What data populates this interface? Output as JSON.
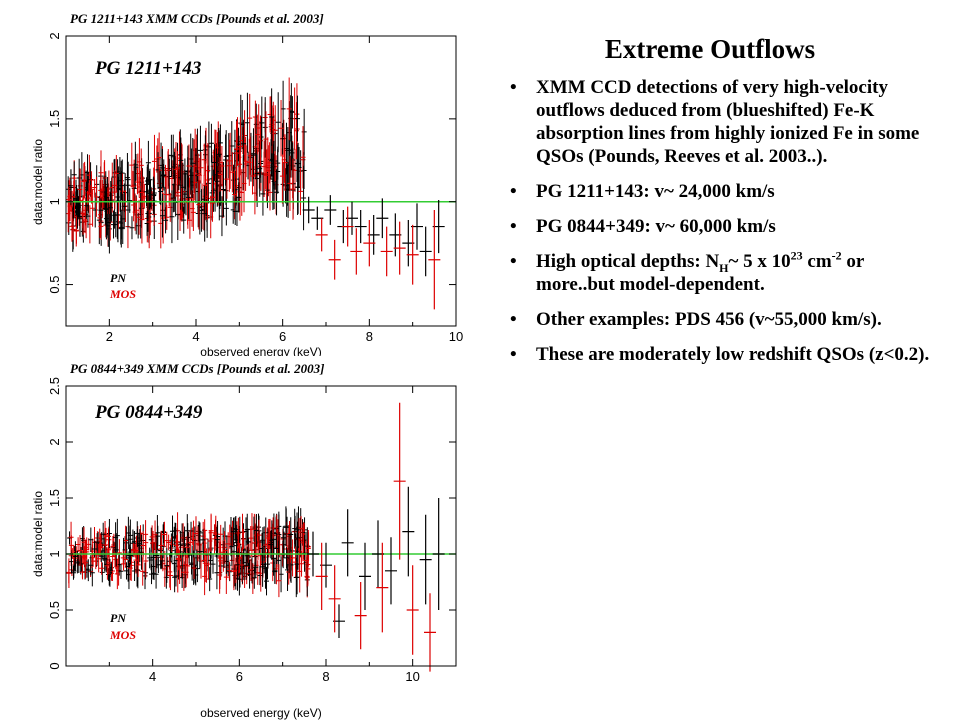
{
  "slide": {
    "title": "Extreme Outflows",
    "bullets": [
      {
        "text": "XMM CCD detections of very high-velocity outflows deduced from (blueshifted) Fe-K absorption lines from highly ionized Fe in some QSOs (Pounds, Reeves et al. 2003..)."
      },
      {
        "text": "PG 1211+143: v~ 24,000 km/s"
      },
      {
        "text": "PG 0844+349: v~ 60,000 km/s"
      },
      {
        "pre": "High optical depths: N",
        "sub": "H",
        "mid": "~ 5 x 10",
        "sup1": "23",
        "mid2": " cm",
        "sup2": "-2",
        "post": " or more..but model-dependent."
      },
      {
        "text": "Other examples: PDS 456 (v~55,000 km/s)."
      },
      {
        "text": "These are moderately low redshift QSOs (z<0.2)."
      }
    ]
  },
  "chart_data": [
    {
      "type": "scatter",
      "caption": "PG 1211+143 XMM CCDs [Pounds et al. 2003]",
      "object_label": "PG 1211+143",
      "xlabel": "observed energy (keV)",
      "ylabel": "data:model ratio",
      "xlim": [
        1,
        10
      ],
      "ylim": [
        0.25,
        2
      ],
      "xticks": [
        2,
        4,
        6,
        8,
        10
      ],
      "yticks": [
        0.5,
        1,
        1.5,
        2
      ],
      "reference_line": 1,
      "reference_color": "#33cc33",
      "legend": [
        {
          "name": "PN",
          "color": "#000000"
        },
        {
          "name": "MOS",
          "color": "#dd0000"
        }
      ],
      "series": [
        {
          "name": "PN",
          "color": "#000000",
          "x": [
            6.6,
            6.8,
            7.1,
            7.4,
            7.6,
            7.8,
            8.1,
            8.3,
            8.6,
            8.9,
            9.1,
            9.3,
            9.6
          ],
          "y": [
            0.95,
            0.9,
            0.95,
            0.85,
            0.9,
            0.85,
            0.8,
            0.9,
            0.8,
            0.75,
            0.85,
            0.7,
            0.85
          ],
          "err": [
            0.08,
            0.07,
            0.09,
            0.1,
            0.1,
            0.1,
            0.12,
            0.12,
            0.13,
            0.14,
            0.14,
            0.15,
            0.16
          ]
        },
        {
          "name": "MOS",
          "color": "#dd0000",
          "x": [
            6.9,
            7.2,
            7.5,
            7.7,
            8.0,
            8.4,
            8.7,
            9.0,
            9.5
          ],
          "y": [
            0.8,
            0.65,
            0.85,
            0.7,
            0.75,
            0.7,
            0.72,
            0.68,
            0.65
          ],
          "err": [
            0.1,
            0.12,
            0.12,
            0.14,
            0.14,
            0.15,
            0.16,
            0.18,
            0.3
          ]
        }
      ]
    },
    {
      "type": "scatter",
      "caption": "PG 0844+349 XMM CCDs [Pounds et al. 2003]",
      "object_label": "PG 0844+349",
      "xlabel": "observed energy (keV)",
      "ylabel": "data:model ratio",
      "xlim": [
        2,
        11
      ],
      "ylim": [
        0,
        2.5
      ],
      "xticks": [
        4,
        6,
        8,
        10
      ],
      "yticks": [
        0,
        0.5,
        1,
        1.5,
        2,
        2.5
      ],
      "reference_line": 1,
      "reference_color": "#33cc33",
      "legend": [
        {
          "name": "PN",
          "color": "#000000"
        },
        {
          "name": "MOS",
          "color": "#dd0000"
        }
      ],
      "series": [
        {
          "name": "PN",
          "color": "#000000",
          "x": [
            7.7,
            8.0,
            8.3,
            8.5,
            8.9,
            9.2,
            9.5,
            9.9,
            10.3,
            10.6
          ],
          "y": [
            1.0,
            0.9,
            0.4,
            1.1,
            0.8,
            1.0,
            0.85,
            1.2,
            0.95,
            1.0
          ],
          "err": [
            0.2,
            0.2,
            0.15,
            0.3,
            0.3,
            0.3,
            0.3,
            0.4,
            0.4,
            0.5
          ]
        },
        {
          "name": "MOS",
          "color": "#dd0000",
          "x": [
            7.9,
            8.2,
            8.8,
            9.3,
            9.7,
            10.0,
            10.4
          ],
          "y": [
            0.8,
            0.6,
            0.45,
            0.7,
            1.65,
            0.5,
            0.3
          ],
          "err": [
            0.3,
            0.3,
            0.3,
            0.4,
            0.7,
            0.4,
            0.35
          ]
        }
      ]
    }
  ]
}
